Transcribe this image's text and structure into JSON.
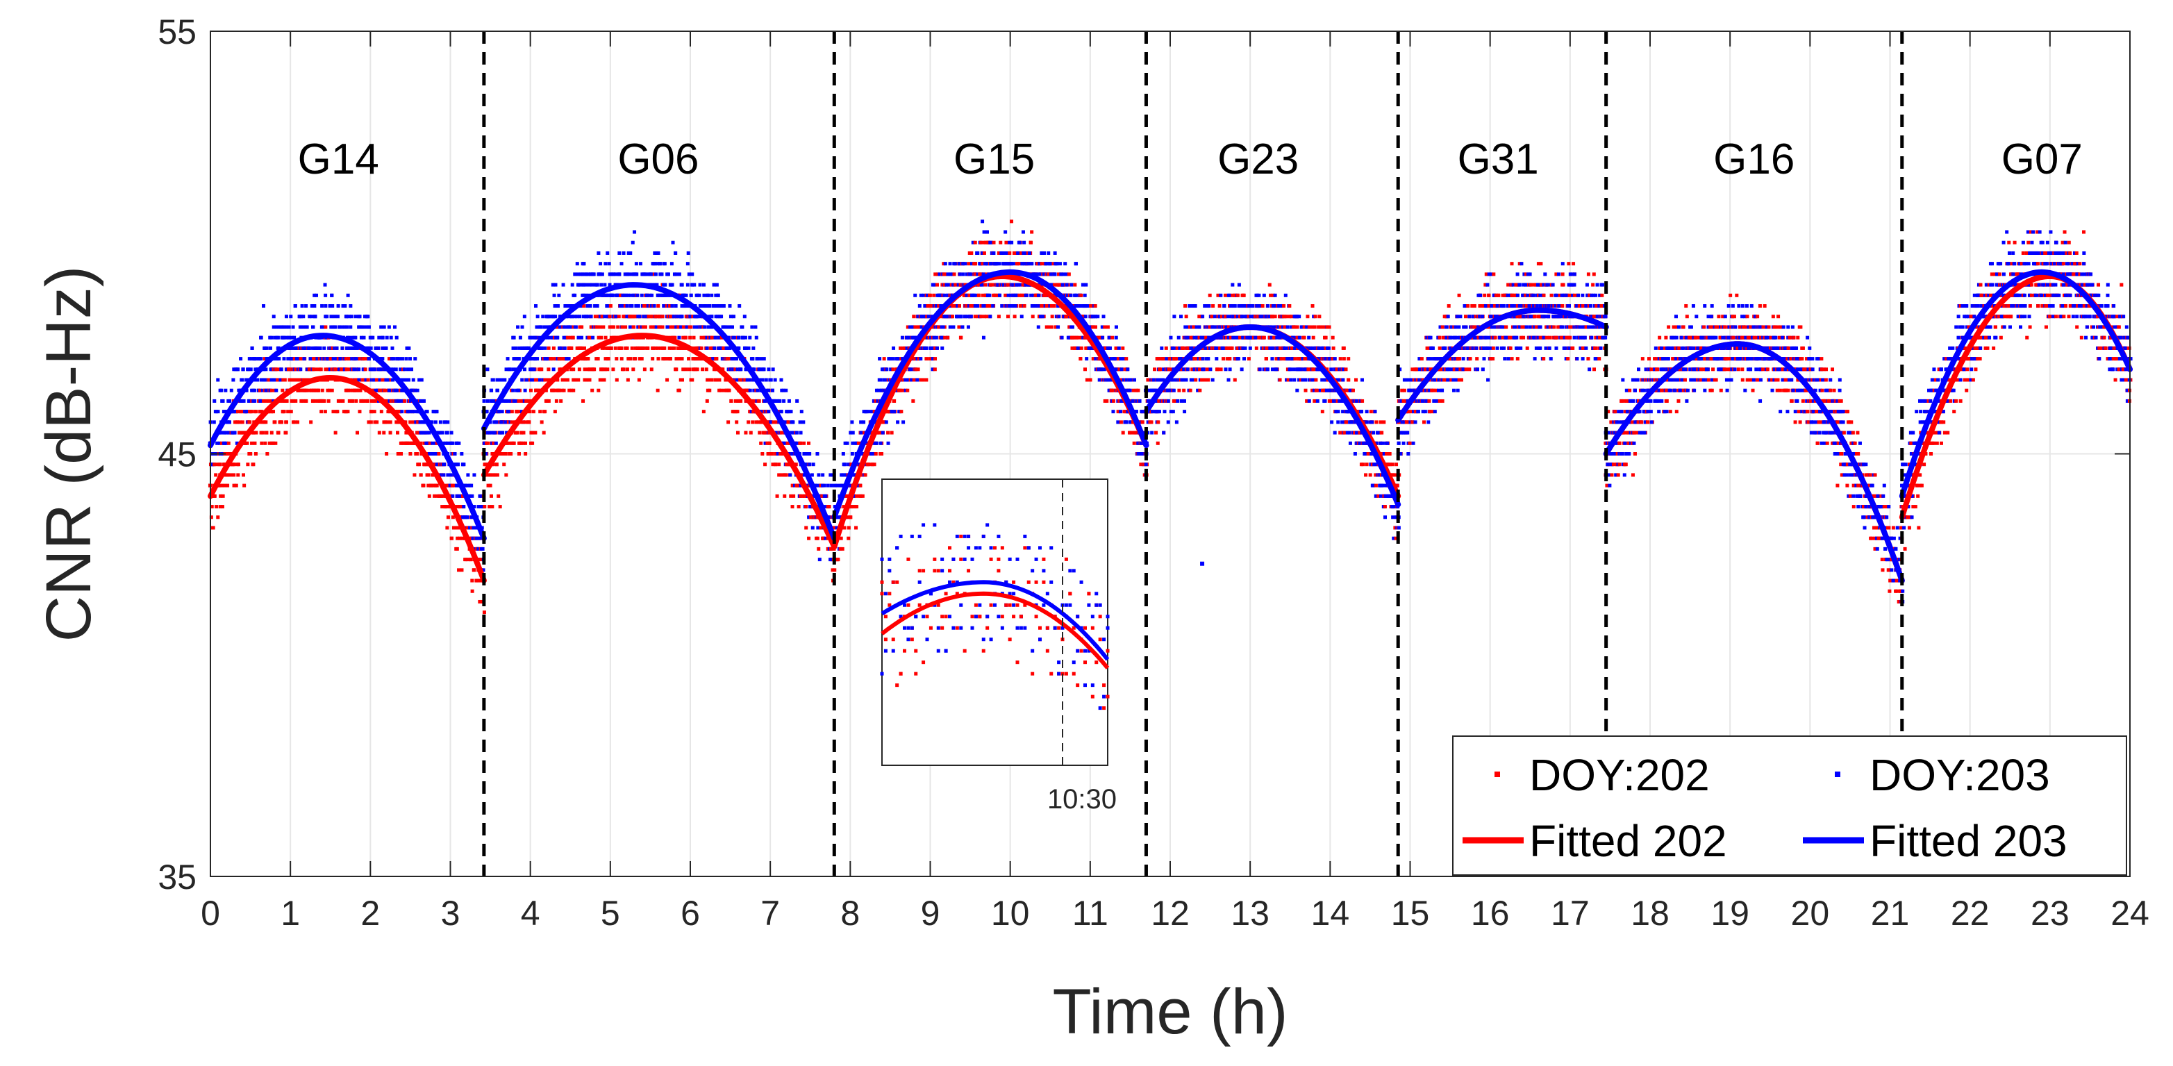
{
  "chart_data": {
    "type": "scatter",
    "xlabel": "Time (h)",
    "ylabel": "CNR (dB-Hz)",
    "xlim": [
      0,
      24
    ],
    "ylim": [
      35,
      55
    ],
    "xticks": [
      0,
      1,
      2,
      3,
      4,
      5,
      6,
      7,
      8,
      9,
      10,
      11,
      12,
      13,
      14,
      15,
      16,
      17,
      18,
      19,
      20,
      21,
      22,
      23,
      24
    ],
    "yticks": [
      35,
      45,
      55
    ],
    "grid": true,
    "boundaries": [
      3.42,
      7.8,
      11.7,
      14.85,
      17.45,
      21.15
    ],
    "satellites": [
      {
        "name": "G14",
        "label_x": 1.6,
        "start": 0.0,
        "end": 3.42,
        "fit_202": {
          "peak_t": 1.5,
          "peak": 46.8,
          "start": 44.0,
          "end": 42.0
        },
        "fit_203": {
          "peak_t": 1.4,
          "peak": 47.8,
          "start": 45.2,
          "end": 43.0
        }
      },
      {
        "name": "G06",
        "label_x": 5.6,
        "start": 3.42,
        "end": 7.8,
        "fit_202": {
          "peak_t": 5.4,
          "peak": 47.8,
          "start": 44.5,
          "end": 42.8
        },
        "fit_203": {
          "peak_t": 5.3,
          "peak": 49.0,
          "start": 45.6,
          "end": 43.0
        }
      },
      {
        "name": "G15",
        "label_x": 9.8,
        "start": 7.8,
        "end": 11.7,
        "fit_202": {
          "peak_t": 9.9,
          "peak": 49.2,
          "start": 42.8,
          "end": 45.2
        },
        "fit_203": {
          "peak_t": 10.0,
          "peak": 49.3,
          "start": 43.5,
          "end": 45.2
        }
      },
      {
        "name": "G23",
        "label_x": 13.1,
        "start": 11.7,
        "end": 14.85,
        "fit_202": {
          "peak_t": 13.0,
          "peak": 48.0,
          "start": 46.0,
          "end": 44.0
        },
        "fit_203": {
          "peak_t": 13.0,
          "peak": 48.0,
          "start": 46.0,
          "end": 43.8
        }
      },
      {
        "name": "G31",
        "label_x": 16.1,
        "start": 14.85,
        "end": 17.45,
        "fit_202": {
          "peak_t": 16.6,
          "peak": 48.4,
          "start": 45.8,
          "end": 48.0
        },
        "fit_203": {
          "peak_t": 16.6,
          "peak": 48.4,
          "start": 45.8,
          "end": 48.0
        }
      },
      {
        "name": "G16",
        "label_x": 19.3,
        "start": 17.45,
        "end": 21.15,
        "fit_202": {
          "peak_t": 19.1,
          "peak": 47.6,
          "start": 45.0,
          "end": 42.0
        },
        "fit_203": {
          "peak_t": 19.1,
          "peak": 47.6,
          "start": 45.0,
          "end": 42.0
        }
      },
      {
        "name": "G07",
        "label_x": 22.9,
        "start": 21.15,
        "end": 24.0,
        "fit_202": {
          "peak_t": 23.0,
          "peak": 49.2,
          "start": 43.5,
          "end": 47.0
        },
        "fit_203": {
          "peak_t": 22.9,
          "peak": 49.3,
          "start": 44.0,
          "end": 47.0
        }
      }
    ],
    "series": [
      {
        "name": "DOY:202",
        "kind": "points",
        "color": "#ff0000"
      },
      {
        "name": "DOY:203",
        "kind": "points",
        "color": "#0000ff"
      },
      {
        "name": "Fitted 202",
        "kind": "line",
        "color": "#ff0000"
      },
      {
        "name": "Fitted 203",
        "kind": "line",
        "color": "#0000ff"
      }
    ],
    "outliers": [
      {
        "t": 12.4,
        "cnr": 42.4,
        "series": "DOY:203"
      }
    ],
    "inset": {
      "label": "10:30",
      "marker_fraction": 0.8,
      "fit_202": {
        "peak_t": 0.45,
        "peak": 0.6,
        "start": 0.46,
        "end": 0.34
      },
      "fit_203": {
        "peak_t": 0.45,
        "peak": 0.64,
        "start": 0.53,
        "end": 0.37
      }
    },
    "legend": {
      "position": "bottom-right",
      "columns": 2
    }
  }
}
